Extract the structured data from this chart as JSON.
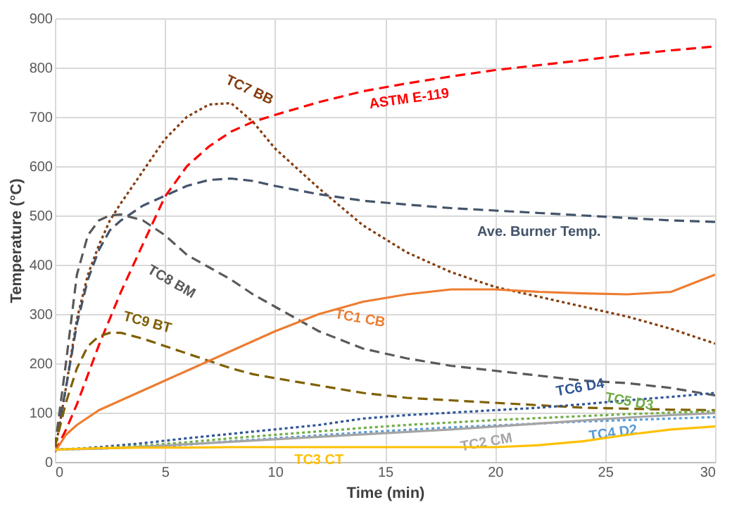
{
  "chart_data": {
    "type": "line",
    "xlabel": "Time (min)",
    "ylabel": "Temperature (°C)",
    "xlim": [
      0,
      30
    ],
    "xticks": [
      0,
      5,
      10,
      15,
      20,
      25,
      30
    ],
    "ylim": [
      0,
      900
    ],
    "yticks": [
      0,
      100,
      200,
      300,
      400,
      500,
      600,
      700,
      800,
      900
    ],
    "grid": true,
    "legend": false,
    "marker": "none",
    "series": [
      {
        "name": "ASTM E-119",
        "color": "#ff0000",
        "line_style": "dashed",
        "x": [
          0,
          0.5,
          1,
          2,
          3,
          4,
          5,
          6,
          7,
          8,
          9,
          10,
          12,
          14,
          16,
          18,
          20,
          22,
          24,
          26,
          28,
          30
        ],
        "values": [
          20,
          65,
          117,
          237,
          345,
          442,
          538,
          600,
          640,
          670,
          690,
          704,
          730,
          752,
          768,
          782,
          795,
          805,
          815,
          826,
          835,
          843
        ]
      },
      {
        "name": "TC7 BB",
        "color": "#843c0c",
        "line_style": "dotted",
        "x": [
          0,
          0.5,
          1,
          1.5,
          2,
          2.5,
          3,
          4,
          5,
          6,
          7,
          8,
          9,
          10,
          12,
          14,
          16,
          18,
          20,
          22,
          24,
          26,
          28,
          30
        ],
        "values": [
          20,
          150,
          290,
          380,
          440,
          490,
          525,
          590,
          655,
          700,
          725,
          728,
          690,
          636,
          555,
          480,
          425,
          385,
          355,
          335,
          315,
          295,
          270,
          240
        ]
      },
      {
        "name": "Ave. Burner Temp.",
        "color": "#44546a",
        "line_style": "dashed",
        "x": [
          0,
          0.5,
          1,
          1.5,
          2,
          2.5,
          3,
          4,
          5,
          6,
          7,
          8,
          9,
          10,
          12,
          14,
          16,
          18,
          20,
          22,
          24,
          26,
          28,
          30
        ],
        "values": [
          30,
          150,
          280,
          370,
          430,
          470,
          490,
          520,
          540,
          560,
          572,
          575,
          570,
          560,
          543,
          530,
          522,
          515,
          510,
          505,
          500,
          495,
          490,
          487
        ]
      },
      {
        "name": "TC8 BM",
        "color": "#595959",
        "line_style": "dashed",
        "x": [
          0,
          0.5,
          1,
          1.5,
          2,
          2.5,
          3,
          4,
          5,
          6,
          7,
          8,
          9,
          10,
          12,
          14,
          16,
          18,
          20,
          22,
          24,
          26,
          28,
          30
        ],
        "values": [
          30,
          200,
          380,
          460,
          490,
          500,
          502,
          490,
          460,
          420,
          395,
          370,
          340,
          315,
          265,
          230,
          210,
          195,
          185,
          175,
          165,
          160,
          150,
          135
        ]
      },
      {
        "name": "TC9 BT",
        "color": "#7f6000",
        "line_style": "dashed",
        "x": [
          0,
          0.5,
          1,
          1.5,
          2,
          2.5,
          3,
          4,
          5,
          6,
          7,
          8,
          9,
          10,
          12,
          14,
          16,
          18,
          20,
          22,
          24,
          26,
          28,
          30
        ],
        "values": [
          30,
          120,
          190,
          235,
          255,
          262,
          262,
          250,
          235,
          220,
          205,
          190,
          178,
          170,
          155,
          140,
          130,
          125,
          120,
          115,
          110,
          108,
          106,
          105
        ]
      },
      {
        "name": "TC1 CB",
        "color": "#ed7d31",
        "line_style": "solid",
        "x": [
          0,
          0.5,
          1,
          1.5,
          2,
          2.5,
          3,
          4,
          5,
          6,
          7,
          8,
          9,
          10,
          12,
          14,
          16,
          18,
          20,
          22,
          24,
          26,
          28,
          30
        ],
        "values": [
          20,
          55,
          75,
          90,
          105,
          115,
          125,
          145,
          165,
          185,
          205,
          225,
          245,
          265,
          300,
          325,
          340,
          350,
          350,
          345,
          342,
          340,
          345,
          380
        ]
      },
      {
        "name": "TC6 D4",
        "color": "#2f5597",
        "line_style": "dotted",
        "x": [
          0,
          1,
          2,
          3,
          4,
          5,
          6,
          8,
          10,
          12,
          14,
          16,
          18,
          20,
          22,
          24,
          26,
          28,
          30
        ],
        "values": [
          25,
          27,
          30,
          34,
          38,
          43,
          48,
          57,
          66,
          75,
          88,
          95,
          100,
          105,
          110,
          117,
          125,
          132,
          140
        ]
      },
      {
        "name": "TC5 D3",
        "color": "#70ad47",
        "line_style": "dotted",
        "x": [
          0,
          2,
          4,
          6,
          8,
          10,
          12,
          14,
          16,
          18,
          20,
          22,
          24,
          26,
          28,
          30
        ],
        "values": [
          25,
          28,
          33,
          40,
          48,
          55,
          62,
          69,
          75,
          80,
          85,
          89,
          93,
          97,
          100,
          103
        ]
      },
      {
        "name": "TC4 D2",
        "color": "#5b9bd5",
        "line_style": "dotted",
        "x": [
          0,
          2,
          4,
          6,
          8,
          10,
          12,
          14,
          16,
          18,
          20,
          22,
          24,
          26,
          28,
          30
        ],
        "values": [
          25,
          27,
          30,
          35,
          42,
          48,
          54,
          60,
          65,
          70,
          74,
          78,
          82,
          85,
          88,
          91
        ]
      },
      {
        "name": "TC2 CM",
        "color": "#a5a5a5",
        "line_style": "solid",
        "x": [
          0,
          2,
          4,
          6,
          8,
          10,
          12,
          14,
          16,
          18,
          20,
          22,
          24,
          26,
          28,
          30
        ],
        "values": [
          25,
          27,
          31,
          36,
          41,
          46,
          51,
          56,
          61,
          66,
          72,
          78,
          84,
          90,
          95,
          99
        ]
      },
      {
        "name": "TC3 CT",
        "color": "#ffc000",
        "line_style": "solid",
        "x": [
          0,
          2,
          4,
          6,
          8,
          10,
          12,
          14,
          16,
          18,
          20,
          22,
          24,
          26,
          28,
          30
        ],
        "values": [
          25,
          28,
          29,
          29,
          30,
          30,
          30,
          30,
          30,
          30,
          30,
          34,
          42,
          55,
          66,
          72
        ]
      }
    ]
  }
}
